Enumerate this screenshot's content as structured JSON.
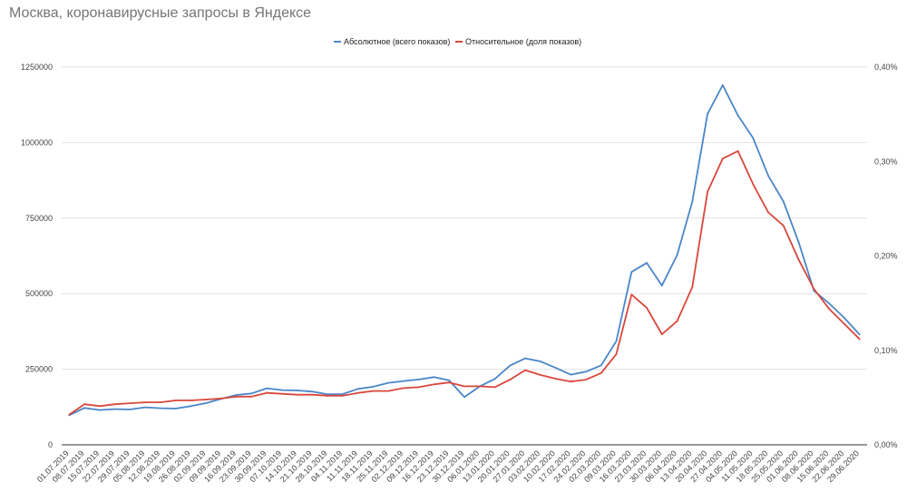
{
  "chart_data": {
    "type": "line",
    "title": "Москва, коронавирусные запросы в Яндексе",
    "xlabel": "",
    "ylabel": "",
    "ylim": [
      0,
      1250000
    ],
    "y2lim": [
      0,
      0.4
    ],
    "y_ticks": [
      "0",
      "250000",
      "500000",
      "750000",
      "1000000",
      "1250000"
    ],
    "y2_ticks": [
      "0,00%",
      "0,10%",
      "0,20%",
      "0,30%",
      "0,40%"
    ],
    "categories": [
      "01.07.2019",
      "08.07.2019",
      "15.07.2019",
      "22.07.2019",
      "29.07.2019",
      "05.08.2019",
      "12.08.2019",
      "19.08.2019",
      "26.08.2019",
      "02.09.2019",
      "09.09.2019",
      "16.09.2019",
      "23.09.2019",
      "30.09.2019",
      "07.10.2019",
      "14.10.2019",
      "21.10.2019",
      "28.10.2019",
      "04.11.2019",
      "11.11.2019",
      "18.11.2019",
      "25.11.2019",
      "02.12.2019",
      "09.12.2019",
      "16.12.2019",
      "23.12.2019",
      "30.12.2019",
      "06.01.2020",
      "13.01.2020",
      "20.01.2020",
      "27.01.2020",
      "03.02.2020",
      "10.02.2020",
      "17.02.2020",
      "24.02.2020",
      "02.03.2020",
      "09.03.2020",
      "16.03.2020",
      "23.03.2020",
      "30.03.2020",
      "06.04.2020",
      "13.04.2020",
      "20.04.2020",
      "27.04.2020",
      "04.05.2020",
      "11.05.2020",
      "18.05.2020",
      "25.05.2020",
      "01.06.2020",
      "08.06.2020",
      "15.06.2020",
      "22.06.2020",
      "29.06.2020"
    ],
    "series": [
      {
        "name": "Абсолютное (всего показов)",
        "color": "#4a86c8",
        "axis": "left",
        "values": [
          98000,
          122000,
          115000,
          118000,
          117000,
          124000,
          121000,
          120000,
          128000,
          138000,
          152000,
          165000,
          170000,
          187000,
          181000,
          180000,
          176000,
          167000,
          168000,
          185000,
          192000,
          205000,
          211000,
          216000,
          224000,
          213000,
          158000,
          193000,
          218000,
          262000,
          286000,
          276000,
          255000,
          232000,
          242000,
          263000,
          343000,
          572000,
          602000,
          527000,
          628000,
          805000,
          1095000,
          1190000,
          1090000,
          1015000,
          890000,
          805000,
          670000,
          510000,
          468000,
          420000,
          365000
        ]
      },
      {
        "name": "Относительное (доля показов)",
        "color": "#d9473b",
        "axis": "right",
        "values": [
          0.032,
          0.043,
          0.041,
          0.043,
          0.044,
          0.045,
          0.045,
          0.047,
          0.047,
          0.048,
          0.049,
          0.051,
          0.051,
          0.055,
          0.054,
          0.053,
          0.053,
          0.052,
          0.052,
          0.055,
          0.057,
          0.057,
          0.06,
          0.061,
          0.064,
          0.066,
          0.062,
          0.062,
          0.061,
          0.069,
          0.079,
          0.074,
          0.07,
          0.067,
          0.069,
          0.076,
          0.096,
          0.159,
          0.145,
          0.117,
          0.131,
          0.167,
          0.268,
          0.303,
          0.311,
          0.276,
          0.246,
          0.232,
          0.196,
          0.165,
          0.144,
          0.128,
          0.112
        ]
      }
    ],
    "legend_position": "top-center"
  }
}
